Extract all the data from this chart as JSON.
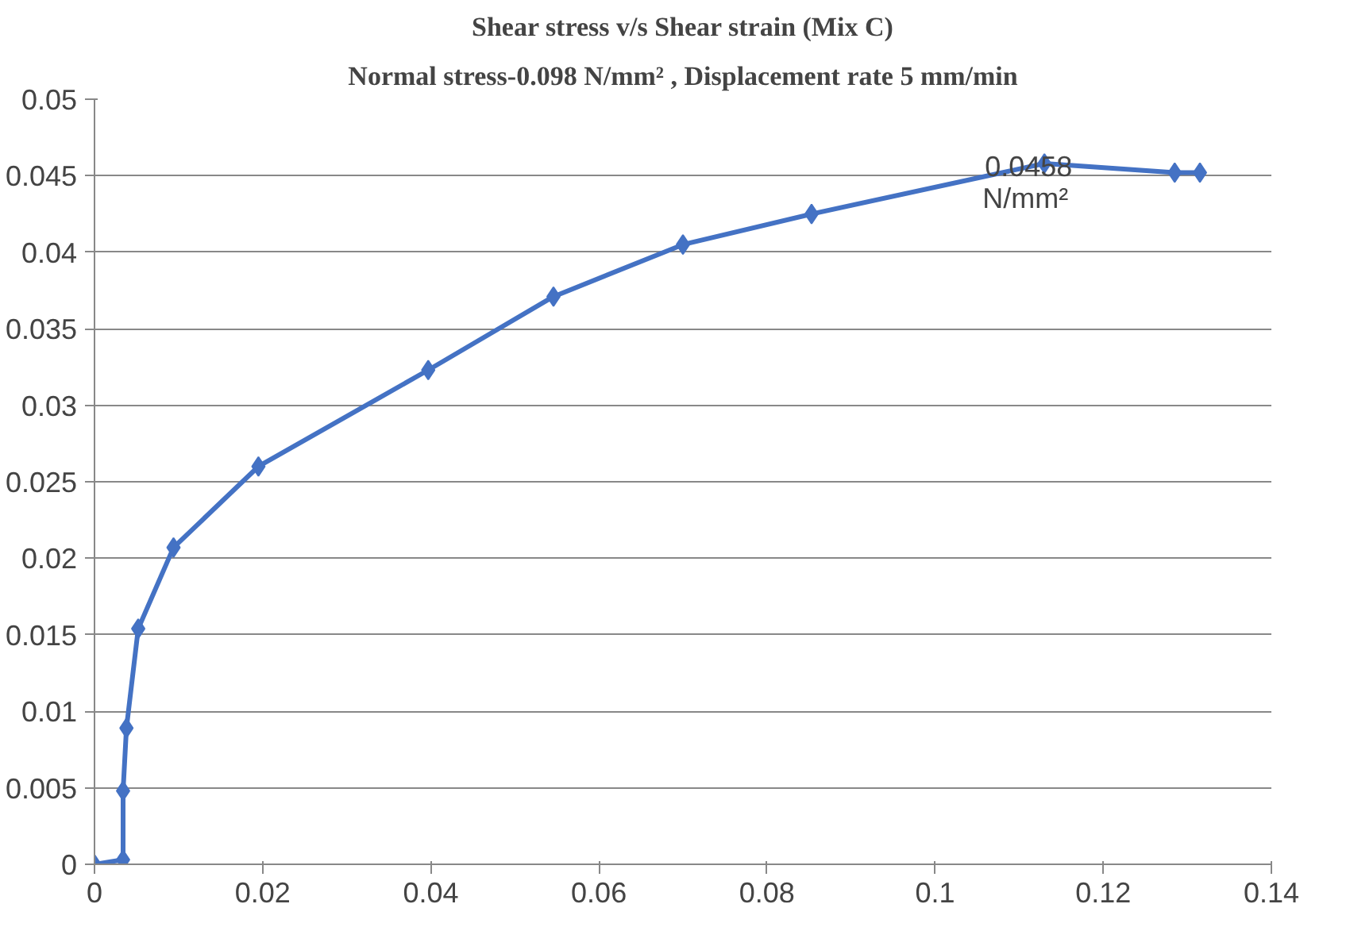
{
  "chart_data": {
    "type": "line",
    "title": "Shear stress v/s Shear strain (Mix C)",
    "subtitle": "Normal stress-0.098 N/mm² , Displacement rate 5 mm/min",
    "x": [
      0,
      0.0034,
      0.0034,
      0.0038,
      0.0052,
      0.0094,
      0.0195,
      0.0397,
      0.0546,
      0.07,
      0.0853,
      0.113,
      0.1285,
      0.1315
    ],
    "series": [
      {
        "color": "#4472c4",
        "values": [
          0,
          0.0003,
          0.0048,
          0.0089,
          0.0154,
          0.0207,
          0.026,
          0.0323,
          0.0371,
          0.0405,
          0.0425,
          0.0458,
          0.0452,
          0.0452
        ]
      }
    ],
    "xlim": [
      0,
      0.14
    ],
    "ylim": [
      0,
      0.05
    ],
    "xticks": [
      0,
      0.02,
      0.04,
      0.06,
      0.08,
      0.1,
      0.12,
      0.14
    ],
    "yticks": [
      0,
      0.005,
      0.01,
      0.015,
      0.02,
      0.025,
      0.03,
      0.035,
      0.04,
      0.045,
      0.05
    ],
    "grid": "y",
    "marker": "diamond",
    "line_style": "solid",
    "annotations": [
      {
        "text": "0.0458 N/mm²",
        "x": 0.113,
        "y": 0.0458
      }
    ]
  }
}
